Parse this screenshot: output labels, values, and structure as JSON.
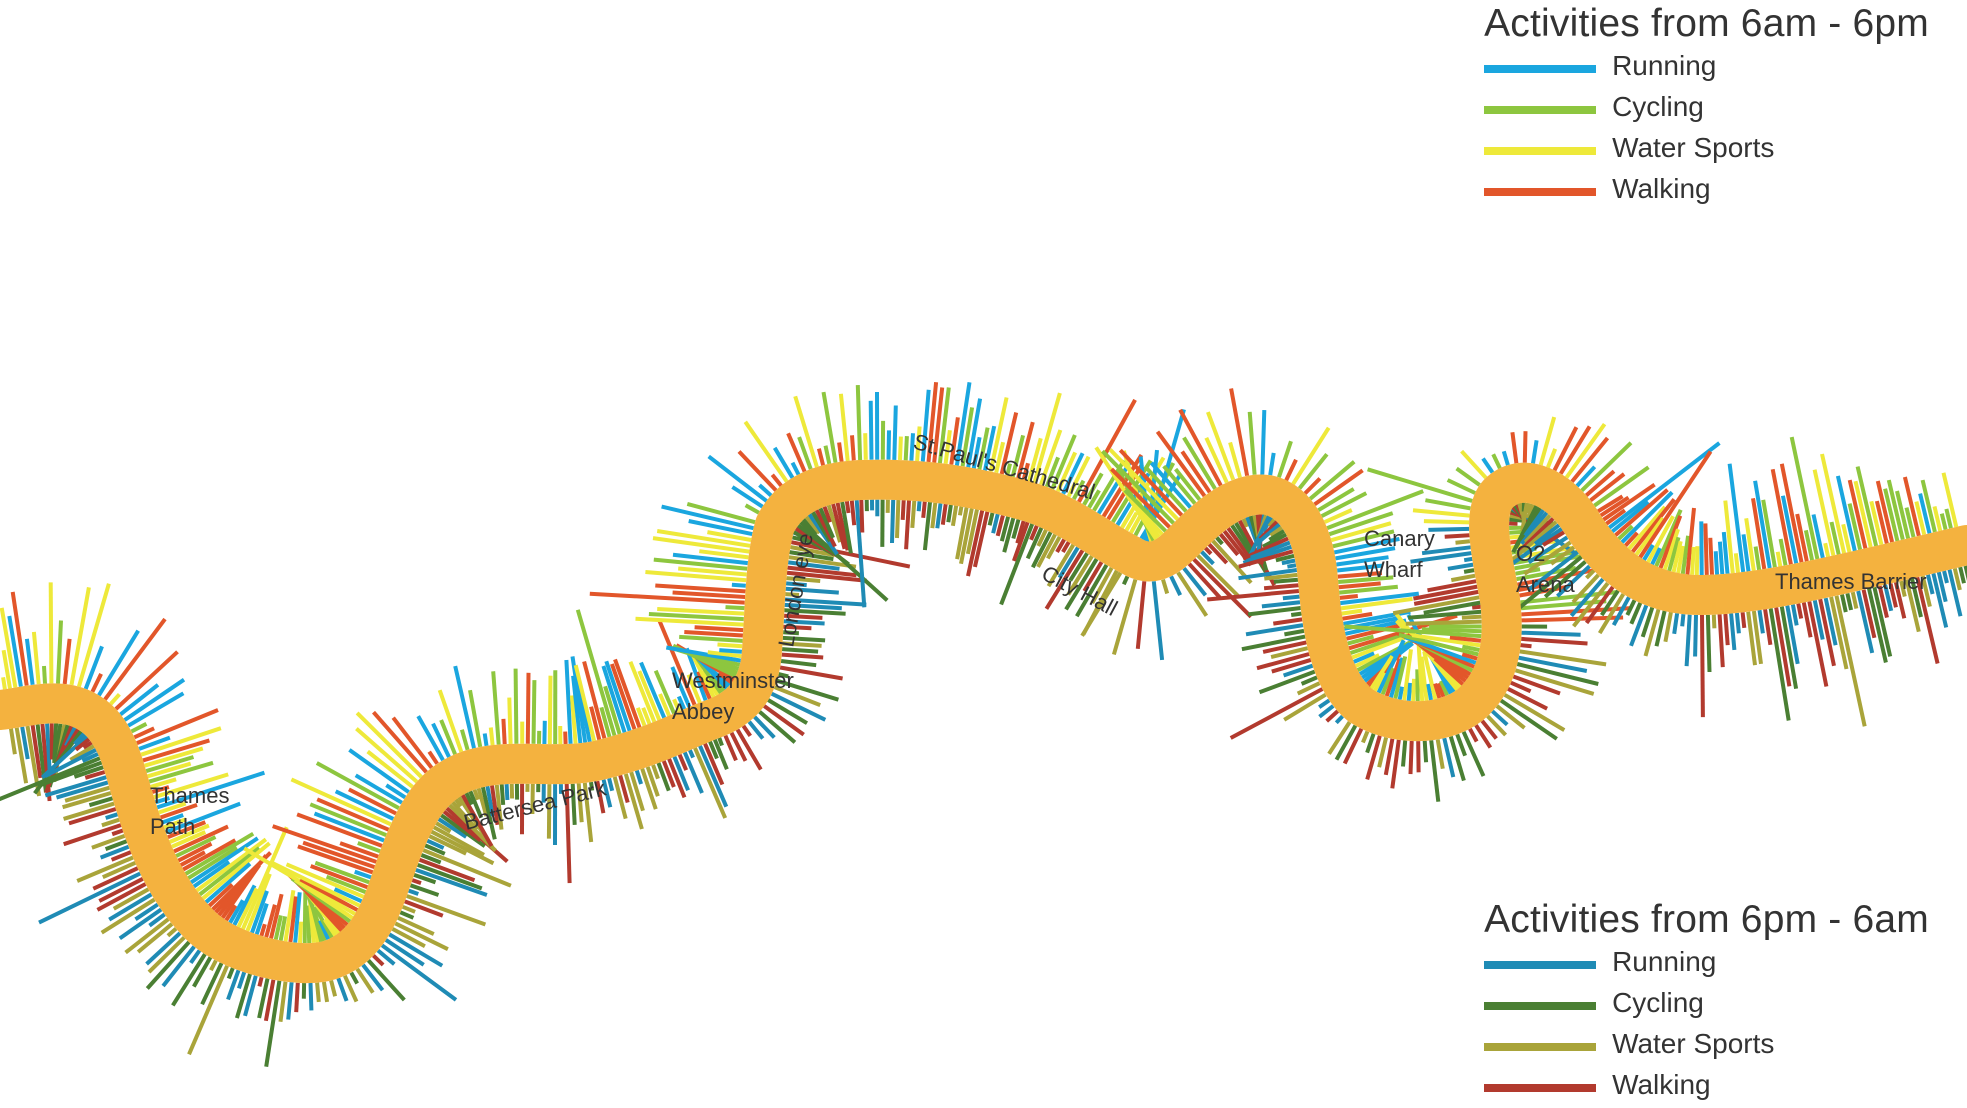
{
  "legend_day": {
    "title": "Activities from 6am - 6pm",
    "items": [
      {
        "label": "Running",
        "color": "#1AA6DF"
      },
      {
        "label": "Cycling",
        "color": "#8DC63F"
      },
      {
        "label": "Water Sports",
        "color": "#EEE93A"
      },
      {
        "label": "Walking",
        "color": "#E2562A"
      }
    ]
  },
  "legend_night": {
    "title": "Activities from 6pm - 6am",
    "items": [
      {
        "label": "Running",
        "color": "#1F8BB5"
      },
      {
        "label": "Cycling",
        "color": "#4A7F33"
      },
      {
        "label": "Water Sports",
        "color": "#A9A43A"
      },
      {
        "label": "Walking",
        "color": "#B23A2E"
      }
    ]
  },
  "river_color": "#F4B23F",
  "places": {
    "thames_path": [
      "Thames",
      "Path"
    ],
    "battersea_park": "Battersea Park",
    "westminster_abbey": [
      "Westminster",
      "Abbey"
    ],
    "london_eye": "London eye",
    "st_pauls": "St.Paul's Cathedral",
    "city_hall": "City Hall",
    "canary_wharf": [
      "Canary",
      "Wharf"
    ],
    "o2_arena": [
      "O2",
      "Arena"
    ],
    "thames_barrier": "Thames Barrier"
  }
}
